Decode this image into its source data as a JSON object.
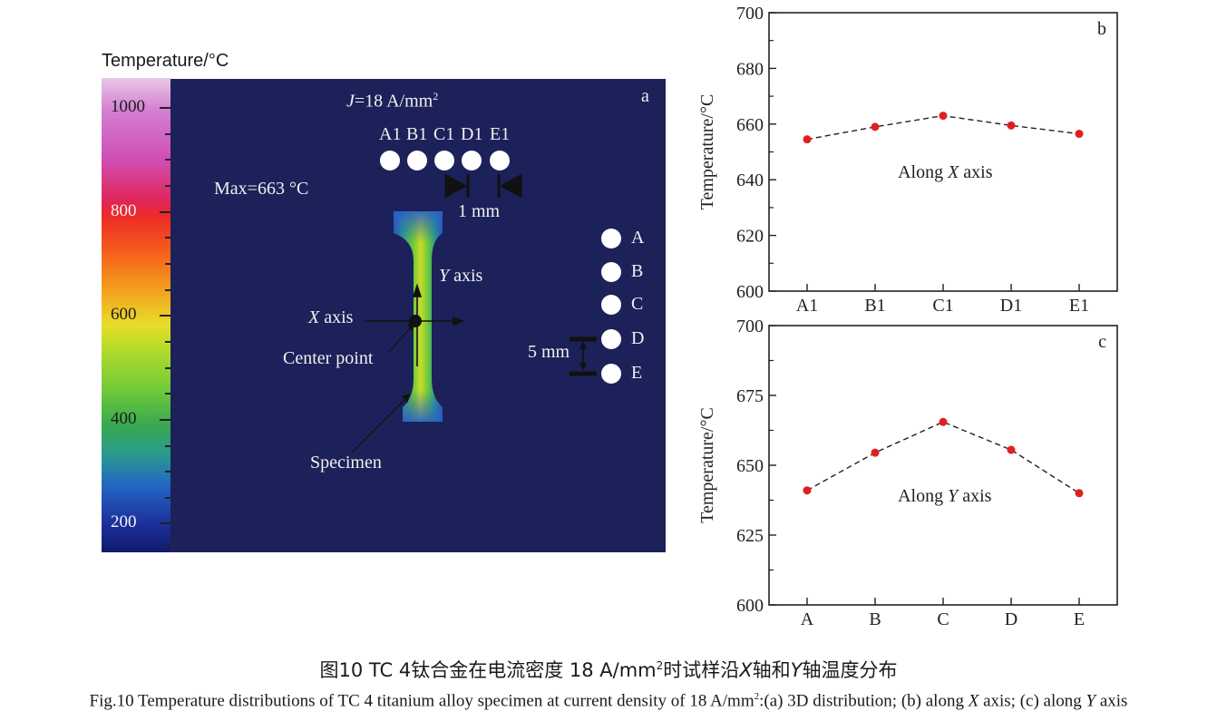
{
  "colorbar": {
    "title": "Temperature/°C",
    "ticks": [
      "1000",
      "800",
      "600",
      "400",
      "200"
    ]
  },
  "panel_a": {
    "label": "a",
    "current_prefix": "J",
    "current_value": "=18 A/mm",
    "current_sup": "2",
    "max_text": "Max=663 °C",
    "top_points": [
      "A1",
      "B1",
      "C1",
      "D1",
      "E1"
    ],
    "spacing_x": "1 mm",
    "side_points": [
      "A",
      "B",
      "C",
      "D",
      "E"
    ],
    "spacing_y": "5 mm",
    "y_axis_var": "Y",
    "y_axis_word": " axis",
    "x_axis_var": "X",
    "x_axis_word": " axis",
    "center_label": "Center point",
    "specimen_label": "Specimen"
  },
  "chart_data": [
    {
      "type": "line",
      "panel_label": "b",
      "annotation_prefix": "Along ",
      "annotation_var": "X",
      "annotation_suffix": " axis",
      "ylabel": "Temperature/°C",
      "categories": [
        "A1",
        "B1",
        "C1",
        "D1",
        "E1"
      ],
      "values": [
        654.5,
        659,
        663,
        659.5,
        656.5
      ],
      "ylim": [
        600,
        700
      ],
      "yticks": [
        "600",
        "620",
        "640",
        "660",
        "680",
        "700"
      ],
      "line_style": "dashed",
      "marker_color": "#e02020"
    },
    {
      "type": "line",
      "panel_label": "c",
      "annotation_prefix": "Along ",
      "annotation_var": "Y",
      "annotation_suffix": " axis",
      "ylabel": "Temperature/°C",
      "categories": [
        "A",
        "B",
        "C",
        "D",
        "E"
      ],
      "values": [
        641,
        654.5,
        665.5,
        655.5,
        640
      ],
      "ylim": [
        600,
        700
      ],
      "yticks": [
        "600",
        "625",
        "650",
        "675",
        "700"
      ],
      "line_style": "dashed",
      "marker_color": "#e02020"
    }
  ],
  "caption": {
    "cn_prefix": "图10  TC 4钛合金在电流密度 18 A/mm",
    "cn_sup": "2",
    "cn_mid1": "时试样沿",
    "cn_x": "X",
    "cn_mid2": "轴和",
    "cn_y": "Y",
    "cn_suffix": "轴温度分布",
    "en_prefix": "Fig.10  Temperature distributions of TC 4 titanium alloy specimen at current density of 18 A/mm",
    "en_sup": "2",
    "en_mid1": ":(a) 3D distribution; (b) along ",
    "en_x": "X",
    "en_mid2": " axis; (c) along ",
    "en_y": "Y",
    "en_suffix": " axis"
  }
}
